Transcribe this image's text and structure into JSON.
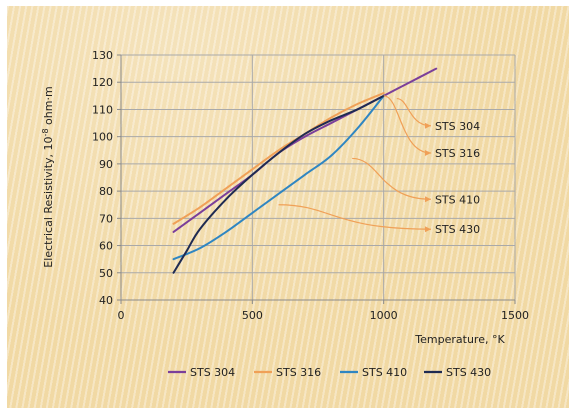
{
  "chart_data": {
    "type": "line",
    "xlabel": "Temperature, °K",
    "ylabel": "Electrical Resistivity, 10^-8 ohm·m",
    "xlim": [
      0,
      1500
    ],
    "ylim": [
      40,
      130
    ],
    "xticks": [
      0,
      500,
      1000,
      1500
    ],
    "yticks": [
      40,
      50,
      60,
      70,
      80,
      90,
      100,
      110,
      120,
      130
    ],
    "grid": true,
    "legend_position": "bottom",
    "series": [
      {
        "name": "STS 304",
        "color": "#7b3f9a",
        "points": [
          [
            200,
            65
          ],
          [
            300,
            72
          ],
          [
            400,
            79
          ],
          [
            500,
            86
          ],
          [
            600,
            94
          ],
          [
            700,
            100
          ],
          [
            800,
            105
          ],
          [
            900,
            110
          ],
          [
            1000,
            115
          ],
          [
            1100,
            120
          ],
          [
            1200,
            125
          ]
        ]
      },
      {
        "name": "STS 316",
        "color": "#f0a057",
        "points": [
          [
            200,
            68
          ],
          [
            300,
            74
          ],
          [
            400,
            81
          ],
          [
            500,
            88
          ],
          [
            600,
            95
          ],
          [
            700,
            101
          ],
          [
            800,
            107
          ],
          [
            900,
            112
          ],
          [
            1000,
            116
          ]
        ]
      },
      {
        "name": "STS 410",
        "color": "#2f86c2",
        "points": [
          [
            200,
            55
          ],
          [
            300,
            59
          ],
          [
            400,
            65
          ],
          [
            500,
            72
          ],
          [
            600,
            79
          ],
          [
            700,
            86
          ],
          [
            800,
            93
          ],
          [
            900,
            103
          ],
          [
            1000,
            115
          ]
        ]
      },
      {
        "name": "STS 430",
        "color": "#1f2b52",
        "points": [
          [
            200,
            50
          ],
          [
            250,
            58
          ],
          [
            300,
            66
          ],
          [
            400,
            77
          ],
          [
            500,
            86
          ],
          [
            600,
            94
          ],
          [
            700,
            101
          ],
          [
            800,
            106
          ],
          [
            900,
            110
          ],
          [
            1000,
            115
          ]
        ]
      }
    ],
    "callouts": [
      {
        "label": "STS 304",
        "from": [
          1050,
          114
        ],
        "to": [
          1180,
          104
        ]
      },
      {
        "label": "STS 316",
        "from": [
          1000,
          115
        ],
        "to": [
          1180,
          94
        ]
      },
      {
        "label": "STS 410",
        "from": [
          880,
          92
        ],
        "to": [
          1180,
          77
        ]
      },
      {
        "label": "STS 430",
        "from": [
          600,
          75
        ],
        "to": [
          1180,
          66
        ]
      }
    ]
  }
}
